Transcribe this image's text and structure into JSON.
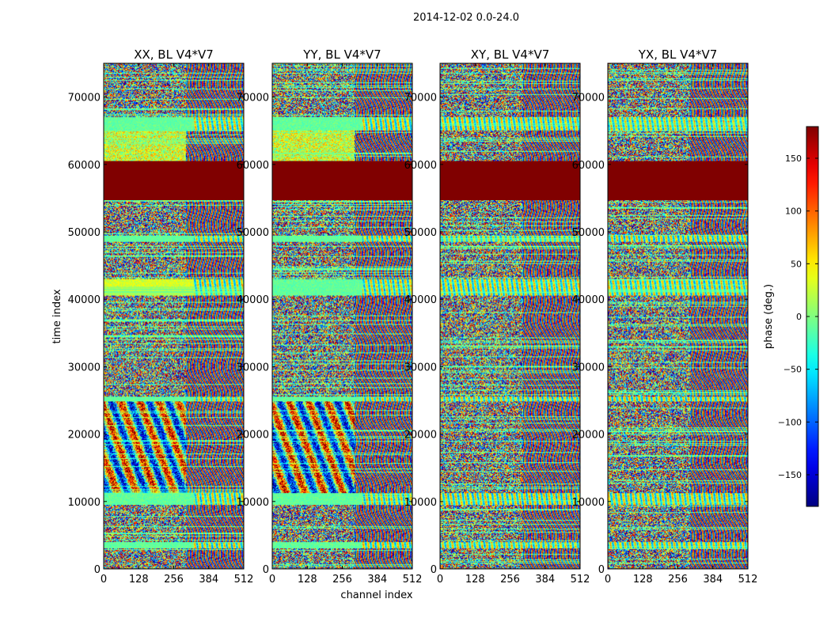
{
  "chart_data": {
    "type": "heatmap",
    "suptitle": "2014-12-02 0.0-24.0",
    "xlabel": "channel index",
    "ylabel": "time index",
    "xlim": [
      0,
      512
    ],
    "ylim": [
      0,
      75000
    ],
    "x_ticks": [
      0,
      128,
      256,
      384,
      512
    ],
    "y_ticks": [
      0,
      10000,
      20000,
      30000,
      40000,
      50000,
      60000,
      70000
    ],
    "colorbar": {
      "label": "phase (deg.)",
      "colormap": "jet",
      "range": [
        -180,
        180
      ],
      "ticks": [
        -150,
        -100,
        -50,
        0,
        50,
        100,
        150
      ]
    },
    "panels": [
      {
        "title": "XX, BL V4*V7"
      },
      {
        "title": "YY, BL V4*V7"
      },
      {
        "title": "XY, BL V4*V7"
      },
      {
        "title": "YX, BL V4*V7"
      }
    ],
    "regions": {
      "saturated_band": {
        "t_range": [
          54700,
          60500
        ],
        "phase_deg": 180
      },
      "low_phase_bands": [
        {
          "t_range": [
            3000,
            4000
          ]
        },
        {
          "t_range": [
            9500,
            11200
          ]
        },
        {
          "t_range": [
            24800,
            25500
          ]
        },
        {
          "t_range": [
            40500,
            43000
          ]
        },
        {
          "t_range": [
            48500,
            49500
          ]
        },
        {
          "t_range": [
            65000,
            67000
          ]
        }
      ],
      "high_phase_region_XX_YY": {
        "t_range": [
          11200,
          24800
        ],
        "c_range": [
          0,
          300
        ]
      }
    }
  }
}
